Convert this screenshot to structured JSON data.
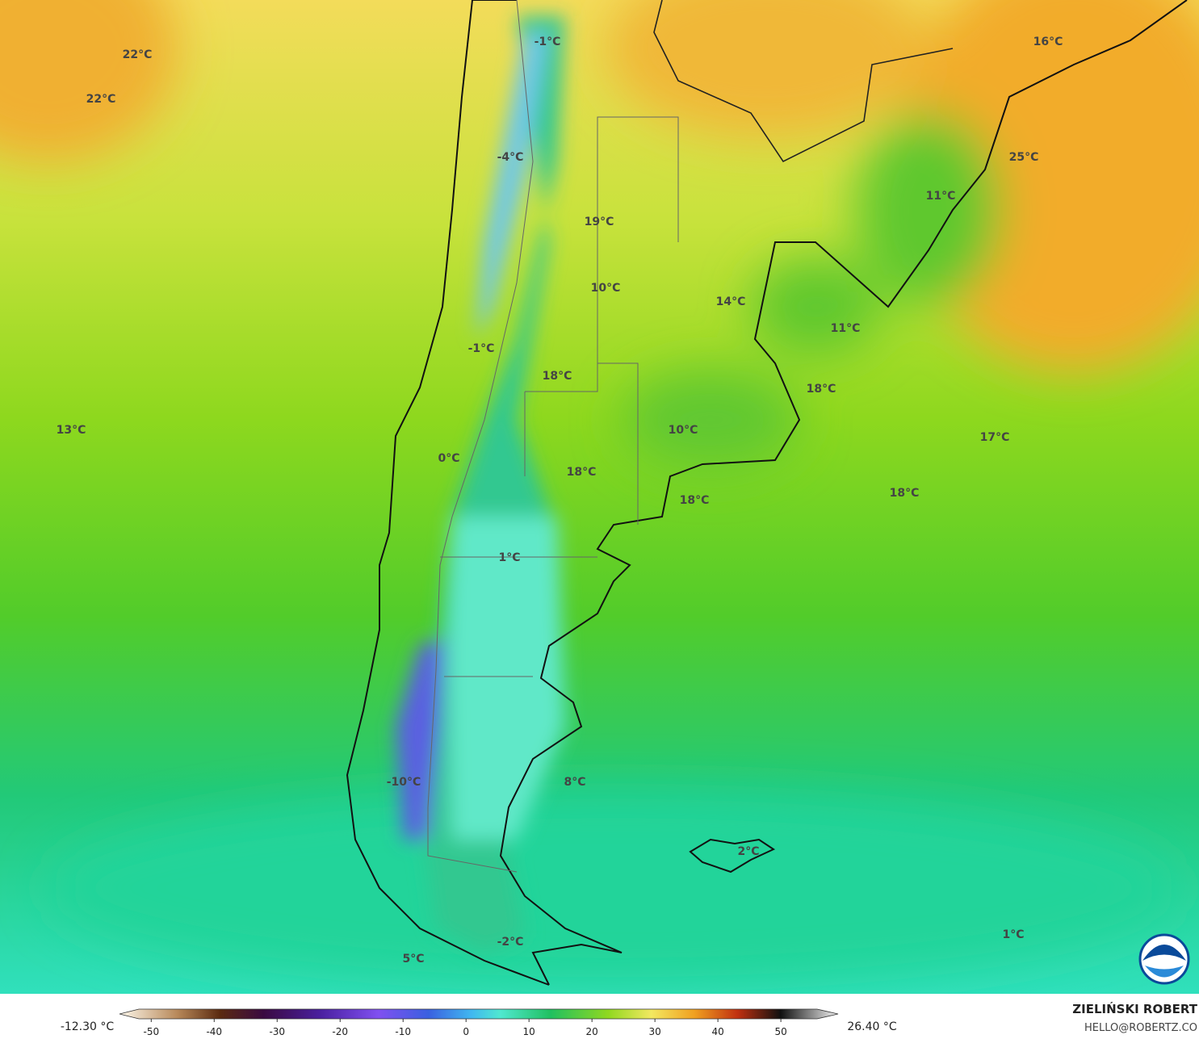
{
  "map": {
    "labels": [
      "22°C",
      "22°C",
      "16°C",
      "-1°C",
      "-4°C",
      "25°C",
      "11°C",
      "19°C",
      "10°C",
      "14°C",
      "11°C",
      "-1°C",
      "18°C",
      "18°C",
      "13°C",
      "10°C",
      "17°C",
      "0°C",
      "18°C",
      "18°C",
      "18°C",
      "1°C",
      "-10°C",
      "8°C",
      "2°C",
      "1°C",
      "-2°C",
      "5°C"
    ]
  },
  "colorbar": {
    "min_label": "-12.30 °C",
    "max_label": "26.40 °C",
    "lim": [
      -53.5,
      55.5
    ],
    "ticks": [
      -50,
      -40,
      -30,
      -20,
      -10,
      0,
      10,
      20,
      30,
      40,
      50
    ]
  },
  "credit": {
    "author": "ZIELIŃSKI ROBERT",
    "email": "HELLO@ROBERTZ.CO"
  }
}
